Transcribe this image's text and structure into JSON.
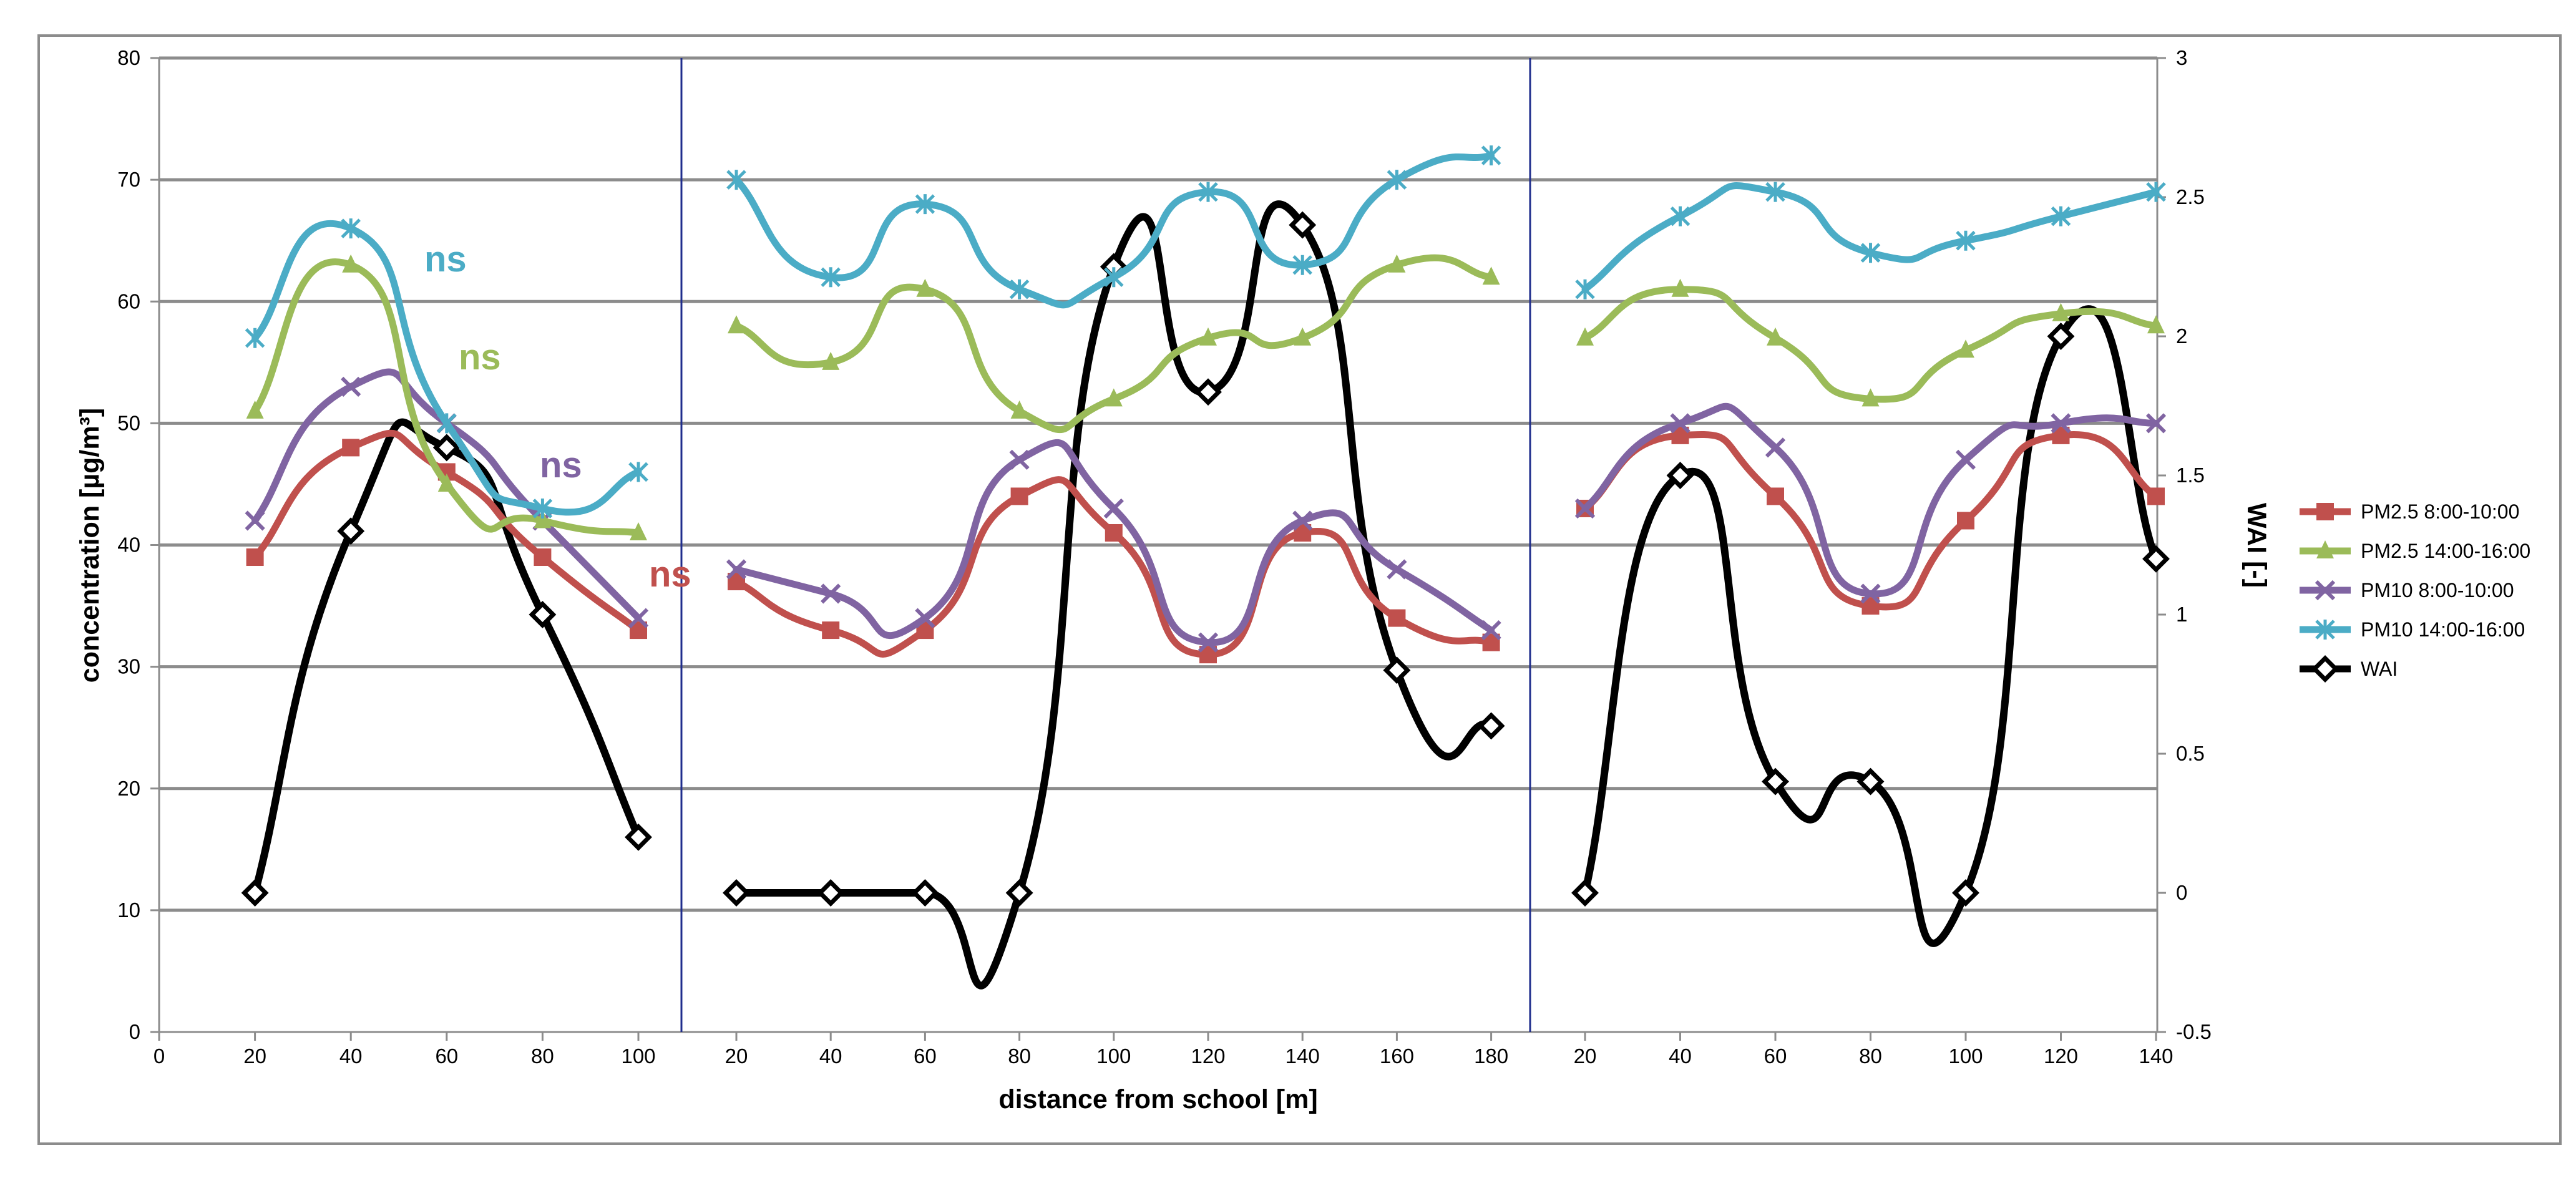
{
  "chart_data": {
    "type": "line",
    "title": "",
    "xlabel": "distance from school [m]",
    "ylabel": "concentration [µg/m³]",
    "y2label": "WAI [-]",
    "ylim": [
      0,
      80
    ],
    "y2lim": [
      -0.5,
      3
    ],
    "y_ticks": [
      "0",
      "10",
      "20",
      "30",
      "40",
      "50",
      "60",
      "70",
      "80"
    ],
    "y2_ticks": [
      "-0.5",
      "0",
      "0.5",
      "1",
      "1.5",
      "2",
      "2.5",
      "3"
    ],
    "grid": true,
    "legend_position": "right",
    "panels": [
      {
        "x_ticks": [
          "0",
          "20",
          "40",
          "60",
          "80",
          "100"
        ],
        "x": [
          20,
          40,
          60,
          80,
          100
        ],
        "series": [
          {
            "name": "PM2.5 8:00-10:00",
            "axis": "left",
            "values": [
              39,
              48,
              46,
              39,
              33
            ]
          },
          {
            "name": "PM2.5 14:00-16:00",
            "axis": "left",
            "values": [
              51,
              63,
              45,
              42,
              41
            ]
          },
          {
            "name": "PM10 8:00-10:00",
            "axis": "left",
            "values": [
              42,
              53,
              50,
              42,
              34
            ]
          },
          {
            "name": "PM10 14:00-16:00",
            "axis": "left",
            "values": [
              57,
              66,
              50,
              43,
              46
            ]
          },
          {
            "name": "WAI",
            "axis": "right",
            "values": [
              0,
              1.3,
              1.6,
              1.0,
              0.2
            ]
          }
        ]
      },
      {
        "x_ticks": [
          "20",
          "40",
          "60",
          "80",
          "100",
          "120",
          "140",
          "160",
          "180"
        ],
        "x": [
          20,
          40,
          60,
          80,
          100,
          120,
          140,
          160,
          180
        ],
        "series": [
          {
            "name": "PM2.5 8:00-10:00",
            "axis": "left",
            "values": [
              37,
              33,
              33,
              44,
              41,
              31,
              41,
              34,
              32
            ]
          },
          {
            "name": "PM2.5 14:00-16:00",
            "axis": "left",
            "values": [
              58,
              55,
              61,
              51,
              52,
              57,
              57,
              63,
              62
            ]
          },
          {
            "name": "PM10 8:00-10:00",
            "axis": "left",
            "values": [
              38,
              36,
              34,
              47,
              43,
              32,
              42,
              38,
              33
            ]
          },
          {
            "name": "PM10 14:00-16:00",
            "axis": "left",
            "values": [
              70,
              62,
              68,
              61,
              62,
              69,
              63,
              70,
              72
            ]
          },
          {
            "name": "WAI",
            "axis": "right",
            "values": [
              0,
              0,
              0,
              0,
              2.25,
              1.8,
              2.4,
              0.8,
              0.6
            ]
          }
        ]
      },
      {
        "x_ticks": [
          "20",
          "40",
          "60",
          "80",
          "100",
          "120",
          "140"
        ],
        "x": [
          20,
          40,
          60,
          80,
          100,
          120,
          140
        ],
        "series": [
          {
            "name": "PM2.5 8:00-10:00",
            "axis": "left",
            "values": [
              43,
              49,
              44,
              35,
              42,
              49,
              44
            ]
          },
          {
            "name": "PM2.5 14:00-16:00",
            "axis": "left",
            "values": [
              57,
              61,
              57,
              52,
              56,
              59,
              58
            ]
          },
          {
            "name": "PM10 8:00-10:00",
            "axis": "left",
            "values": [
              43,
              50,
              48,
              36,
              47,
              50,
              50
            ]
          },
          {
            "name": "PM10 14:00-16:00",
            "axis": "left",
            "values": [
              61,
              67,
              69,
              64,
              65,
              67,
              69
            ]
          },
          {
            "name": "WAI",
            "axis": "right",
            "values": [
              0,
              1.5,
              0.4,
              0.4,
              0,
              2.0,
              1.2
            ]
          }
        ]
      }
    ],
    "annotations": [
      {
        "text": "ns",
        "series": "PM10 14:00-16:00"
      },
      {
        "text": "ns",
        "series": "PM2.5 14:00-16:00"
      },
      {
        "text": "ns",
        "series": "PM10 8:00-10:00"
      },
      {
        "text": "ns",
        "series": "PM2.5 8:00-10:00"
      }
    ]
  },
  "legend": [
    {
      "label": "PM2.5 8:00-10:00",
      "color": "#c0504d",
      "marker": "square"
    },
    {
      "label": "PM2.5 14:00-16:00",
      "color": "#9bbb59",
      "marker": "triangle"
    },
    {
      "label": "PM10 8:00-10:00",
      "color": "#8064a2",
      "marker": "x"
    },
    {
      "label": "PM10 14:00-16:00",
      "color": "#4bacc6",
      "marker": "star"
    },
    {
      "label": "WAI",
      "color": "#000000",
      "marker": "diamond"
    }
  ]
}
